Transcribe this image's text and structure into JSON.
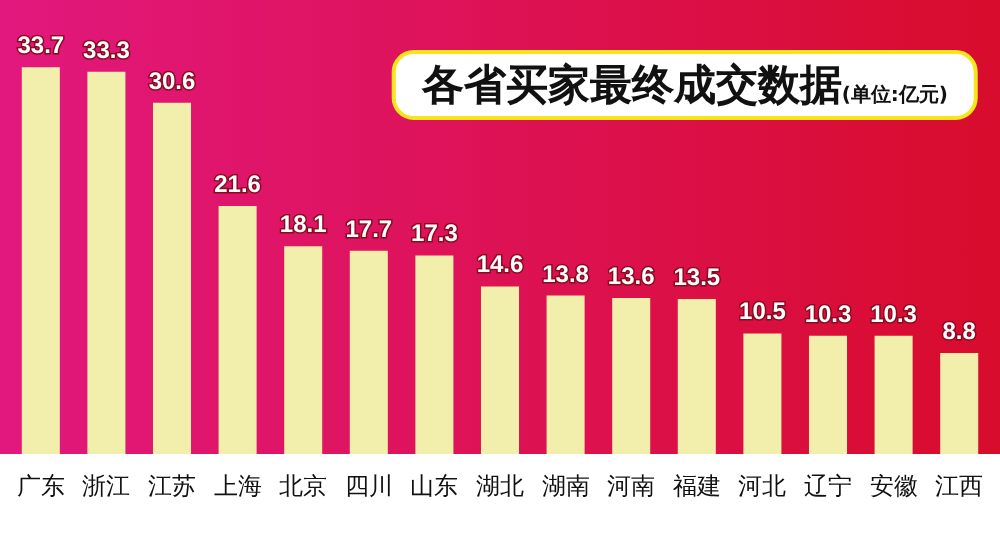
{
  "chart_data": {
    "type": "bar",
    "title": "各省买家最终成交数据",
    "subtitle": "(单位:亿元)",
    "categories": [
      "广东",
      "浙江",
      "江苏",
      "上海",
      "北京",
      "四川",
      "山东",
      "湖北",
      "湖南",
      "河南",
      "福建",
      "河北",
      "辽宁",
      "安徽",
      "江西"
    ],
    "values": [
      33.7,
      33.3,
      30.6,
      21.6,
      18.1,
      17.7,
      17.3,
      14.6,
      13.8,
      13.6,
      13.5,
      10.5,
      10.3,
      10.3,
      8.8
    ],
    "color": "#f2eeac",
    "data_labels": true
  }
}
